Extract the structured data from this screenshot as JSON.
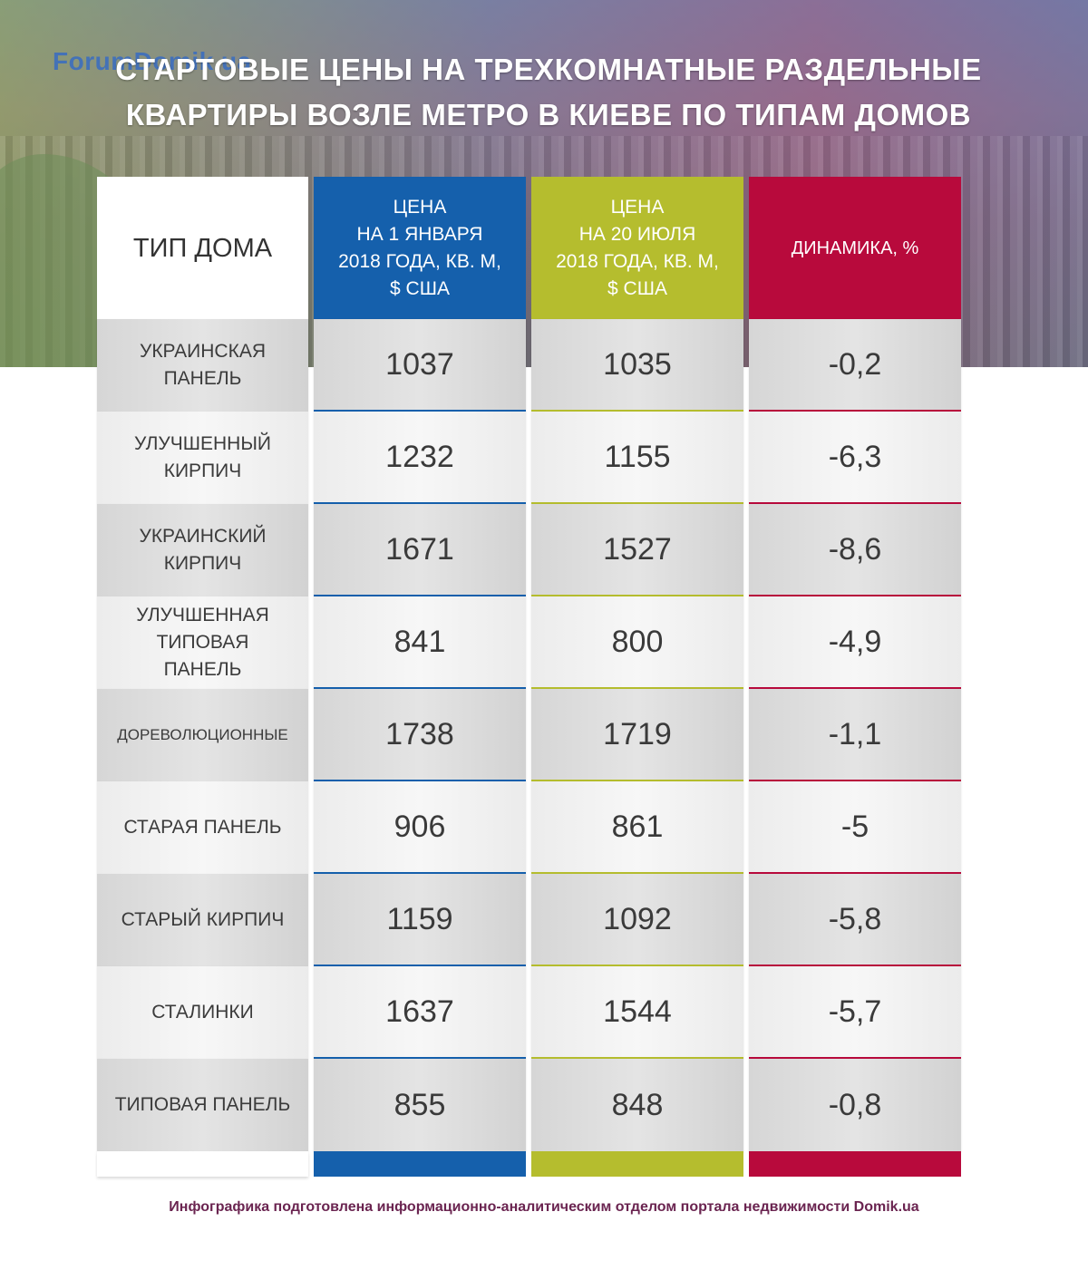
{
  "watermark": "ForumDomik.ua",
  "title": {
    "line1": "СТАРТОВЫЕ ЦЕНЫ НА ТРЕХКОМНАТНЫЕ РАЗДЕЛЬНЫЕ",
    "line2": "КВАРТИРЫ ВОЗЛЕ МЕТРО В КИЕВЕ ПО ТИПАМ ДОМОВ"
  },
  "colors": {
    "jan": "#1560ac",
    "jul": "#b5bd2e",
    "dyn": "#b80a3c"
  },
  "chart_data": {
    "type": "table",
    "title": "СТАРТОВЫЕ ЦЕНЫ НА ТРЕХКОМНАТНЫЕ РАЗДЕЛЬНЫЕ КВАРТИРЫ ВОЗЛЕ МЕТРО В КИЕВЕ ПО ТИПАМ ДОМОВ",
    "headers": [
      "ТИП ДОМА",
      "ЦЕНА\nНА 1 ЯНВАРЯ\n2018 ГОДА, КВ. М,\n$ США",
      "ЦЕНА\nНА 20 ИЮЛЯ\n2018 ГОДА, КВ. М,\n$ США",
      "ДИНАМИКА, %"
    ],
    "rows": [
      {
        "type": "УКРАИНСКАЯ\nПАНЕЛЬ",
        "jan": "1037",
        "jul": "1035",
        "dyn": "-0,2"
      },
      {
        "type": "УЛУЧШЕННЫЙ\nКИРПИЧ",
        "jan": "1232",
        "jul": "1155",
        "dyn": "-6,3"
      },
      {
        "type": "УКРАИНСКИЙ\nКИРПИЧ",
        "jan": "1671",
        "jul": "1527",
        "dyn": "-8,6"
      },
      {
        "type": "УЛУЧШЕННАЯ\nТИПОВАЯ\nПАНЕЛЬ",
        "jan": "841",
        "jul": "800",
        "dyn": "-4,9"
      },
      {
        "type": "ДОРЕВОЛЮЦИОННЫЕ",
        "jan": "1738",
        "jul": "1719",
        "dyn": "-1,1"
      },
      {
        "type": "СТАРАЯ ПАНЕЛЬ",
        "jan": "906",
        "jul": "861",
        "dyn": "-5"
      },
      {
        "type": "СТАРЫЙ КИРПИЧ",
        "jan": "1159",
        "jul": "1092",
        "dyn": "-5,8"
      },
      {
        "type": "СТАЛИНКИ",
        "jan": "1637",
        "jul": "1544",
        "dyn": "-5,7"
      },
      {
        "type": "ТИПОВАЯ ПАНЕЛЬ",
        "jan": "855",
        "jul": "848",
        "dyn": "-0,8"
      }
    ]
  },
  "footer": "Инфографика подготовлена информационно-аналитическим отделом портала недвижимости Domik.ua"
}
